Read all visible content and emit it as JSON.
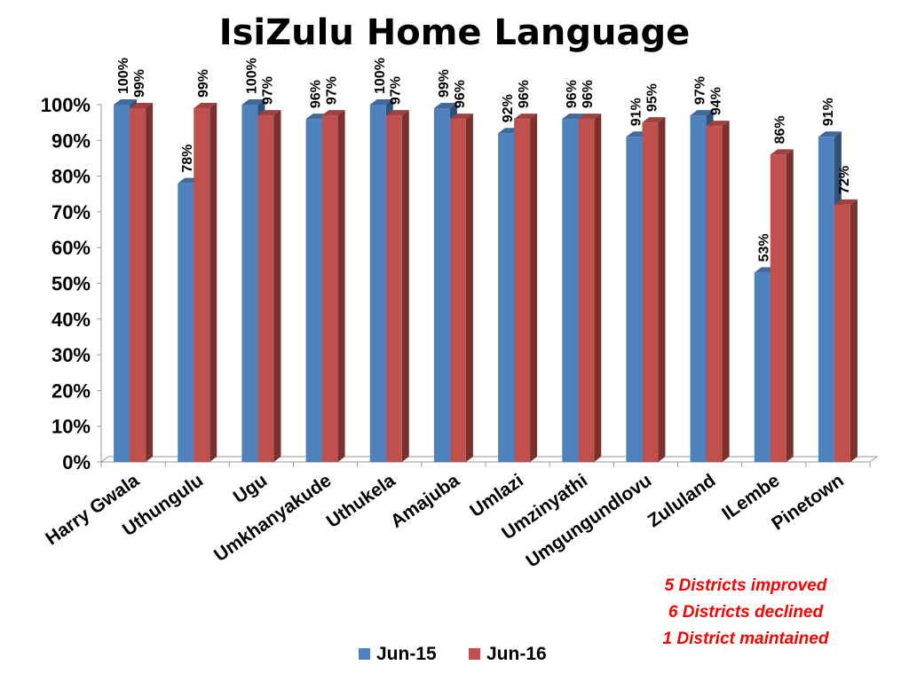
{
  "chart_data": {
    "type": "bar",
    "title": "IsiZulu Home Language",
    "categories": [
      "Harry Gwala",
      "Uthungulu",
      "Ugu",
      "Umkhanyakude",
      "Uthukela",
      "Amajuba",
      "Umlazi",
      "Umzinyathi",
      "Umgungundlovu",
      "Zululand",
      "ILembe",
      "Pinetown"
    ],
    "series": [
      {
        "name": "Jun-15",
        "color": "#4f81bd",
        "values": [
          100,
          78,
          100,
          96,
          100,
          99,
          92,
          96,
          91,
          97,
          53,
          91
        ],
        "labels": [
          "100%",
          "78%",
          "100%",
          "96%",
          "100%",
          "99%",
          "92%",
          "96%",
          "91%",
          "97%",
          "53%",
          "91%"
        ]
      },
      {
        "name": "Jun-16",
        "color": "#c0504d",
        "values": [
          99,
          99,
          97,
          97,
          97,
          96,
          96,
          96,
          95,
          94,
          86,
          72
        ],
        "labels": [
          "99%",
          "99%",
          "97%",
          "97%",
          "97%",
          "96%",
          "96%",
          "96%",
          "95%",
          "94%",
          "86%",
          "72%"
        ]
      }
    ],
    "yticks": [
      "0%",
      "10%",
      "20%",
      "30%",
      "40%",
      "50%",
      "60%",
      "70%",
      "80%",
      "90%",
      "100%"
    ],
    "ylim": [
      0,
      100
    ],
    "grid": false,
    "legend": "bottom",
    "annotations": [
      "5 Districts improved",
      "6 Districts declined",
      "1 District maintained"
    ]
  }
}
